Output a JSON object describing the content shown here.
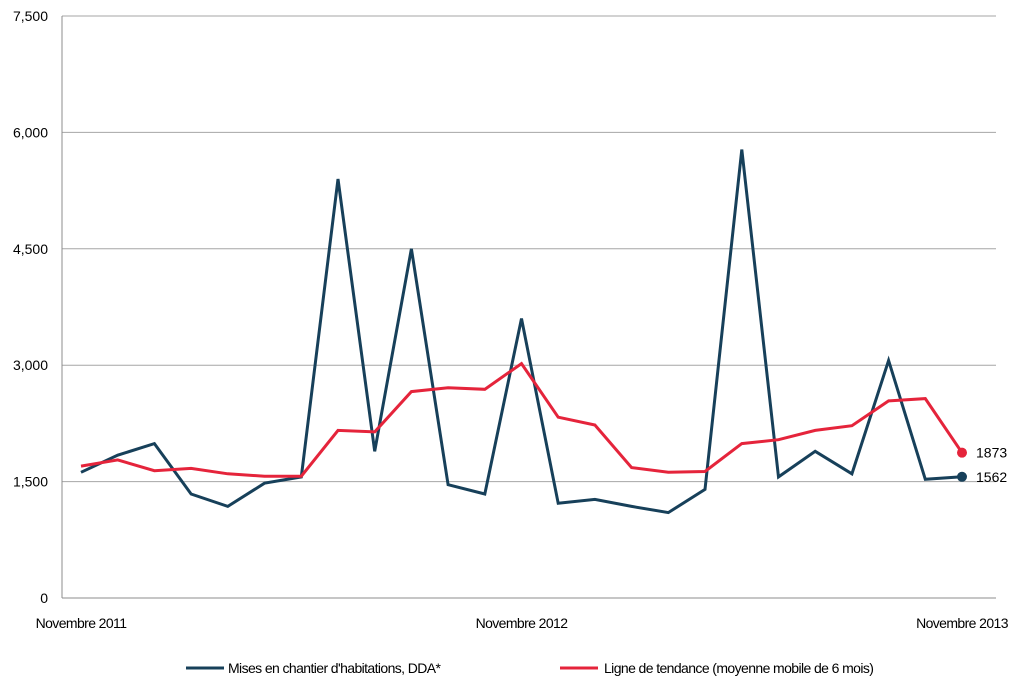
{
  "chart_data": {
    "type": "line",
    "title": "",
    "xlabel": "",
    "ylabel": "",
    "ylim": [
      0,
      7500
    ],
    "yticks": [
      0,
      1500,
      3000,
      4500,
      6000,
      7500
    ],
    "ytick_labels": [
      "0",
      "1,500",
      "3,000",
      "4,500",
      "6,000",
      "7,500"
    ],
    "x_tick_labels": [
      {
        "index": 0,
        "label": "Novembre 2011"
      },
      {
        "index": 12,
        "label": "Novembre 2012"
      },
      {
        "index": 24,
        "label": "Novembre 2013"
      }
    ],
    "grid": true,
    "legend_position": "bottom",
    "series": [
      {
        "name": "Mises en chantier d'habitations, DDA*",
        "color": "#17405a",
        "values": [
          1620,
          1840,
          1990,
          1340,
          1180,
          1480,
          1560,
          5400,
          1890,
          4500,
          1460,
          1340,
          3600,
          1220,
          1270,
          1180,
          1100,
          1400,
          5780,
          1560,
          1890,
          1600,
          3060,
          1530,
          1562
        ],
        "end_label": "1562"
      },
      {
        "name": "Ligne de tendance (moyenne mobile de 6 mois)",
        "color": "#e5243b",
        "values": [
          1700,
          1780,
          1640,
          1670,
          1600,
          1570,
          1570,
          2160,
          2140,
          2660,
          2710,
          2690,
          3020,
          2330,
          2230,
          1680,
          1620,
          1630,
          1990,
          2040,
          2160,
          2220,
          2540,
          2570,
          1873
        ],
        "end_label": "1873"
      }
    ]
  }
}
